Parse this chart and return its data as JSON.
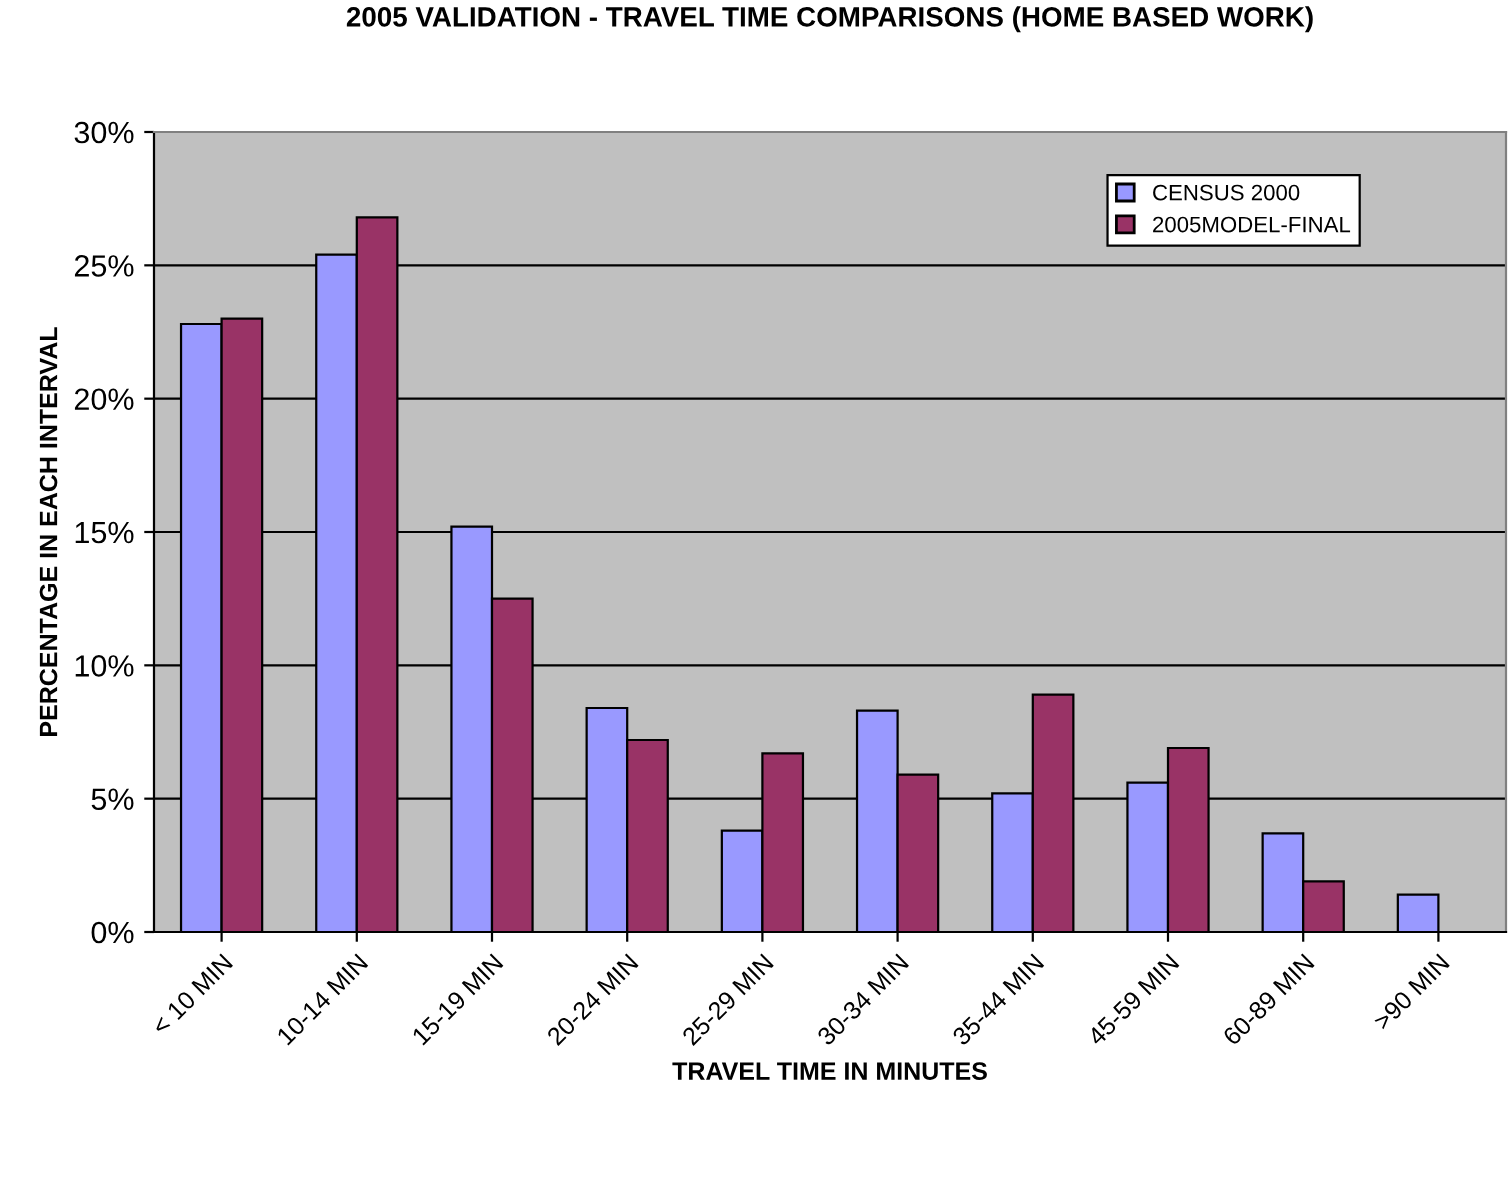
{
  "chart_data": {
    "type": "bar",
    "title": "2005 VALIDATION - TRAVEL TIME COMPARISONS (HOME BASED WORK)",
    "xlabel": "TRAVEL TIME IN MINUTES",
    "ylabel": "PERCENTAGE IN EACH INTERVAL",
    "categories": [
      "< 10 MIN",
      "10-14 MIN",
      "15-19 MIN",
      "20-24 MIN",
      "25-29 MIN",
      "30-34 MIN",
      "35-44 MIN",
      "45-59 MIN",
      "60-89 MIN",
      ">90 MIN"
    ],
    "series": [
      {
        "name": "CENSUS 2000",
        "color": "#9999ff",
        "values": [
          22.8,
          25.4,
          15.2,
          8.4,
          3.8,
          8.3,
          5.2,
          5.6,
          3.7,
          1.4
        ]
      },
      {
        "name": "2005MODEL-FINAL",
        "color": "#993366",
        "values": [
          23.0,
          26.8,
          12.5,
          7.2,
          6.7,
          5.9,
          8.9,
          6.9,
          1.9,
          null
        ]
      }
    ],
    "ylim": [
      0,
      30
    ],
    "yticks": [
      {
        "value": 0,
        "label": "0%"
      },
      {
        "value": 5,
        "label": "5%"
      },
      {
        "value": 10,
        "label": "10%"
      },
      {
        "value": 15,
        "label": "15%"
      },
      {
        "value": 20,
        "label": "20%"
      },
      {
        "value": 25,
        "label": "25%"
      },
      {
        "value": 30,
        "label": "30%"
      }
    ],
    "grid": "y",
    "legend": "top right"
  }
}
